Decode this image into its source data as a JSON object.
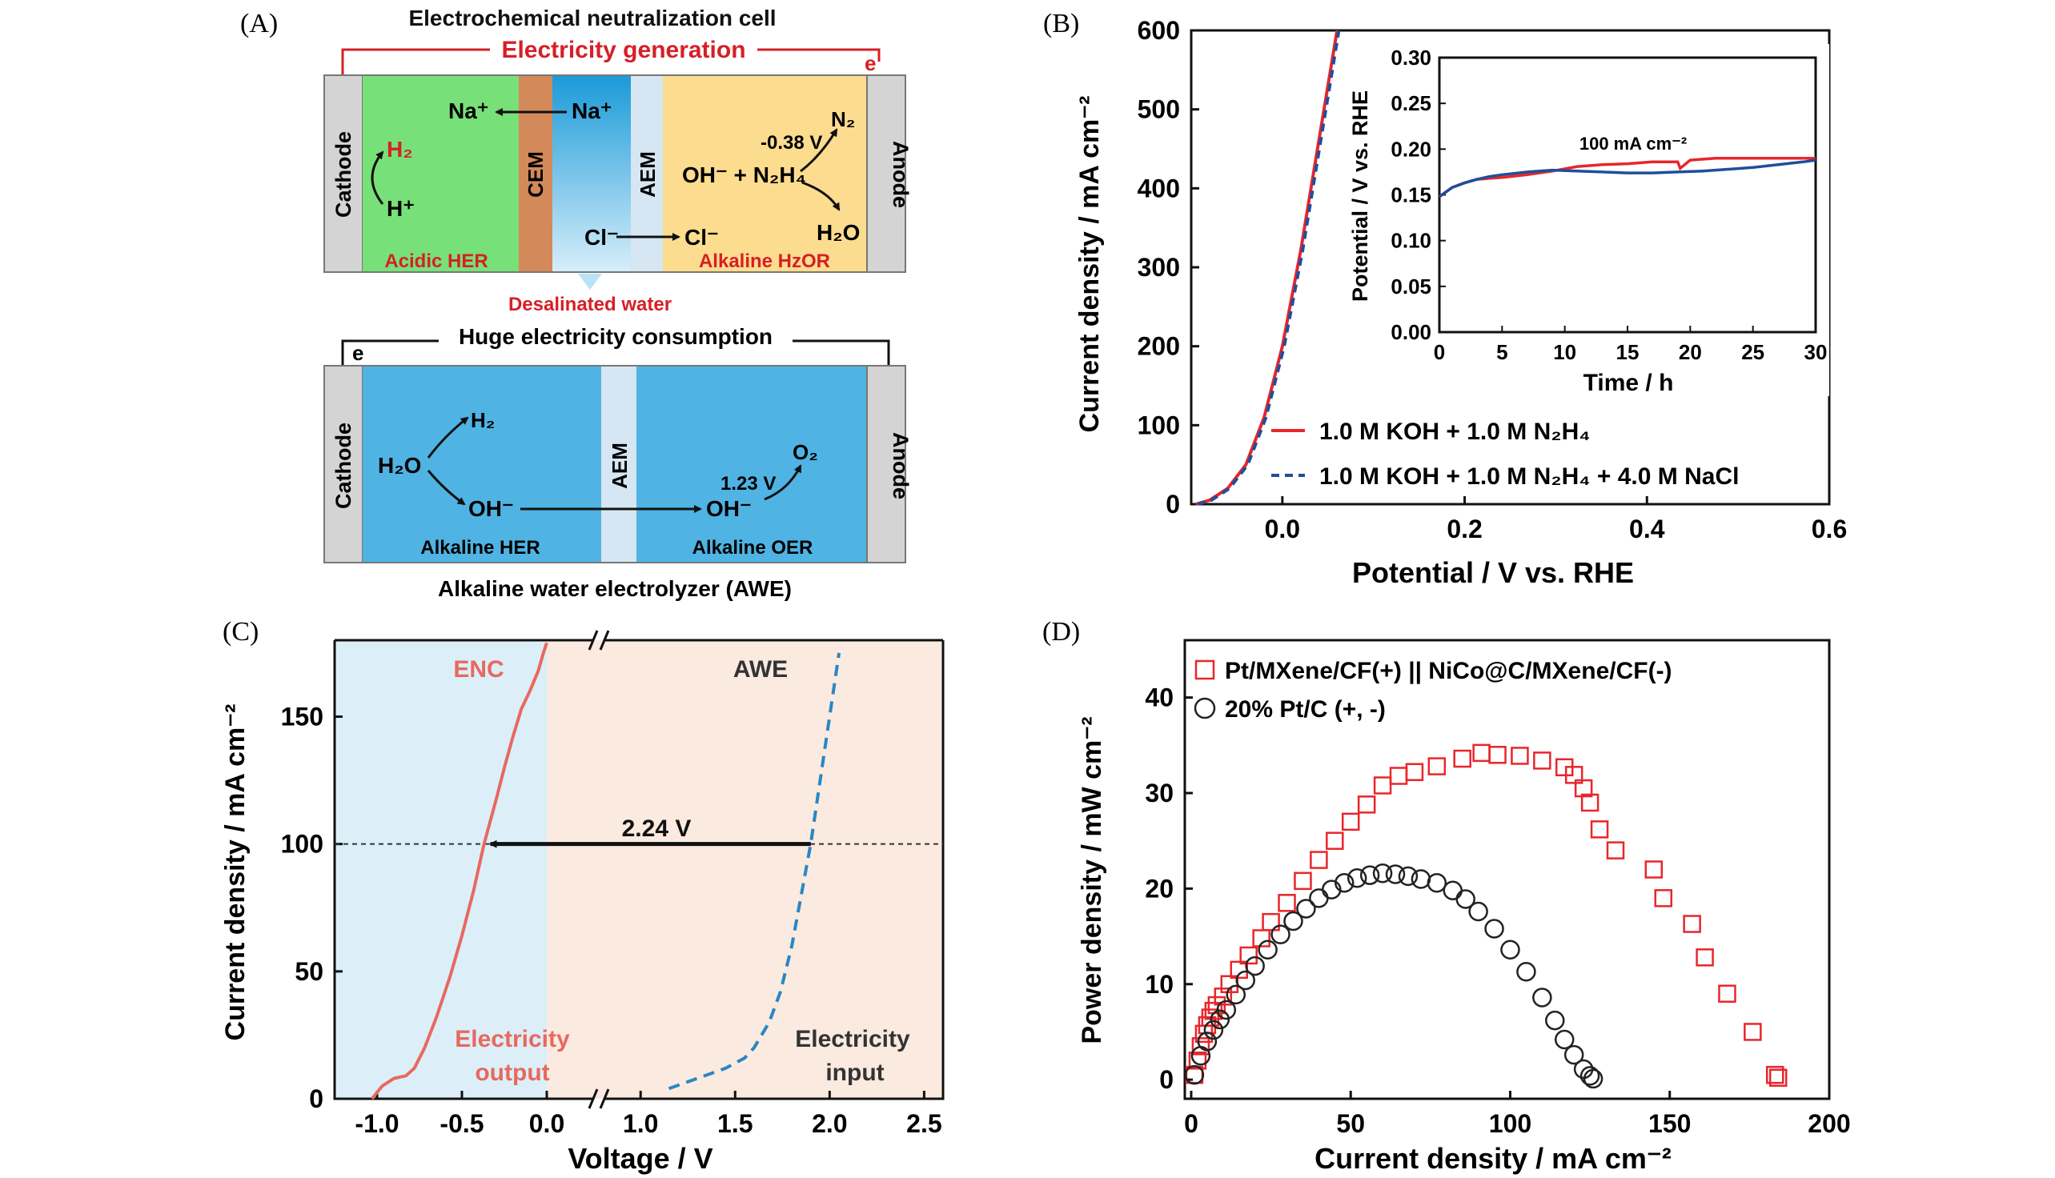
{
  "panelA": {
    "label": "(A)",
    "cell_title": "Electrochemical neutralization cell",
    "gen_label": "Electricity generation",
    "e_top": "e",
    "cathode": "Cathode",
    "anode": "Anode",
    "cem": "CEM",
    "aem": "AEM",
    "na_left": "Na⁺",
    "na_right": "Na⁺",
    "h2": "H₂",
    "hplus": "H⁺",
    "n2": "N₂",
    "potential": "-0.38 V",
    "oh_n2h4": "OH⁻ + N₂H₄",
    "h2o": "H₂O",
    "cl_left": "Cl⁻",
    "cl_right": "Cl⁻",
    "acidic_her": "Acidic HER",
    "alk_hzor": "Alkaline HzOR",
    "desal": "Desalinated water",
    "huge": "Huge electricity consumption",
    "e_bot": "e",
    "awe_h2": "H₂",
    "awe_h2o": "H₂O",
    "awe_oh1": "OH⁻",
    "awe_oh2": "OH⁻",
    "awe_o2": "O₂",
    "awe_v": "1.23 V",
    "alk_her": "Alkaline HER",
    "alk_oer": "Alkaline OER",
    "awe_title": "Alkaline water electrolyzer (AWE)"
  },
  "chart_data": [
    {
      "panel": "(B)",
      "type": "line",
      "xlabel": "Potential / V vs. RHE",
      "ylabel": "Current density / mA cm⁻²",
      "xlim": [
        -0.1,
        0.6
      ],
      "ylim": [
        0,
        600
      ],
      "xticks": [
        "0.0",
        "0.2",
        "0.4",
        "0.6"
      ],
      "yticks": [
        "0",
        "100",
        "200",
        "300",
        "400",
        "500",
        "600"
      ],
      "series": [
        {
          "name": "1.0 M KOH + 1.0 M N₂H₄",
          "color": "#e8262b",
          "style": "solid",
          "x": [
            -0.095,
            -0.08,
            -0.06,
            -0.04,
            -0.02,
            0.0,
            0.01,
            0.02,
            0.03,
            0.04,
            0.05,
            0.06
          ],
          "y": [
            0,
            5,
            20,
            50,
            110,
            200,
            260,
            320,
            390,
            460,
            530,
            600
          ]
        },
        {
          "name": "1.0 M KOH + 1.0 M N₂H₄ + 4.0 M NaCl",
          "color": "#1f4e9c",
          "style": "dashed",
          "x": [
            -0.093,
            -0.078,
            -0.058,
            -0.038,
            -0.018,
            0.002,
            0.012,
            0.022,
            0.032,
            0.042,
            0.052,
            0.062
          ],
          "y": [
            0,
            5,
            20,
            50,
            110,
            200,
            260,
            320,
            390,
            460,
            530,
            600
          ]
        }
      ],
      "inset": {
        "xlabel": "Time / h",
        "ylabel": "Potential / V vs. RHE",
        "xlim": [
          0,
          30
        ],
        "ylim": [
          0,
          0.3
        ],
        "xticks": [
          "0",
          "5",
          "10",
          "15",
          "20",
          "25",
          "30"
        ],
        "yticks": [
          "0.00",
          "0.05",
          "0.10",
          "0.15",
          "0.20",
          "0.25",
          "0.30"
        ],
        "annotation": "100 mA cm⁻²",
        "series": [
          {
            "color": "#e8262b",
            "x": [
              0,
              1,
              2,
              3,
              4,
              5,
              7,
              9,
              11,
              13,
              15,
              17,
              19,
              19.2,
              20,
              22,
              25,
              28,
              30
            ],
            "y": [
              0.148,
              0.158,
              0.163,
              0.167,
              0.168,
              0.169,
              0.172,
              0.176,
              0.181,
              0.183,
              0.184,
              0.186,
              0.186,
              0.179,
              0.188,
              0.19,
              0.19,
              0.19,
              0.19
            ]
          },
          {
            "color": "#1f4e9c",
            "x": [
              0,
              1,
              2,
              3,
              4,
              5,
              7,
              9,
              11,
              13,
              15,
              17,
              19,
              21,
              23,
              25,
              27,
              29,
              30
            ],
            "y": [
              0.148,
              0.158,
              0.163,
              0.167,
              0.17,
              0.172,
              0.175,
              0.177,
              0.176,
              0.175,
              0.174,
              0.174,
              0.175,
              0.176,
              0.178,
              0.18,
              0.183,
              0.186,
              0.188
            ]
          }
        ]
      }
    },
    {
      "panel": "(C)",
      "type": "line",
      "xlabel": "Voltage / V",
      "ylabel": "Current density / mA cm⁻²",
      "xticks": [
        "-1.0",
        "-0.5",
        "0.0",
        "1.0",
        "1.5",
        "2.0",
        "2.5"
      ],
      "yticks": [
        "0",
        "50",
        "100",
        "150"
      ],
      "ylim": [
        0,
        180
      ],
      "left_xlim": [
        -1.25,
        0.0
      ],
      "right_xlim": [
        0.8,
        2.6
      ],
      "enc_label": "ENC",
      "awe_label": "AWE",
      "arrow_label": "2.24 V",
      "out_label_1": "Electricity",
      "out_label_2": "output",
      "in_label_1": "Electricity",
      "in_label_2": "input",
      "series": [
        {
          "name": "ENC",
          "color": "#e8695f",
          "style": "solid",
          "x": [
            -1.03,
            -0.97,
            -0.9,
            -0.83,
            -0.78,
            -0.72,
            -0.65,
            -0.57,
            -0.5,
            -0.43,
            -0.37,
            -0.3,
            -0.25,
            -0.2,
            -0.15,
            -0.1,
            -0.05,
            -0.02,
            0.0
          ],
          "y": [
            0,
            5,
            8,
            9,
            12,
            20,
            32,
            48,
            64,
            82,
            100,
            117,
            130,
            142,
            153,
            160,
            168,
            175,
            179
          ]
        },
        {
          "name": "AWE",
          "color": "#2a86c4",
          "style": "dashed",
          "x": [
            1.15,
            1.3,
            1.45,
            1.55,
            1.6,
            1.68,
            1.74,
            1.8,
            1.85,
            1.9,
            1.95,
            2.0,
            2.05
          ],
          "y": [
            4,
            8,
            12,
            16,
            20,
            30,
            42,
            60,
            80,
            100,
            125,
            150,
            175
          ]
        }
      ]
    },
    {
      "panel": "(D)",
      "type": "scatter",
      "xlabel": "Current density / mA cm⁻²",
      "ylabel": "Power density / mW cm⁻²",
      "xlim": [
        -2,
        200
      ],
      "ylim": [
        -2,
        46
      ],
      "xticks": [
        "0",
        "50",
        "100",
        "150",
        "200"
      ],
      "yticks": [
        "0",
        "10",
        "20",
        "30",
        "40"
      ],
      "series": [
        {
          "name": "Pt/MXene/CF(+) || NiCo@C/MXene/CF(-)",
          "marker": "square",
          "color": "#e8262b",
          "x": [
            1,
            2,
            3,
            4,
            5,
            6,
            7,
            8,
            10,
            12,
            15,
            18,
            22,
            25,
            30,
            35,
            40,
            45,
            50,
            55,
            60,
            65,
            70,
            77,
            85,
            91,
            96,
            103,
            110,
            117,
            120,
            123,
            125,
            128,
            133,
            145,
            148,
            157,
            161,
            168,
            176,
            183,
            184
          ],
          "y": [
            0.5,
            2,
            3.5,
            4.8,
            5.7,
            6.5,
            7.2,
            7.8,
            8.7,
            10,
            11.5,
            13,
            14.8,
            16.5,
            18.5,
            20.8,
            23,
            25,
            27,
            28.8,
            30.8,
            31.8,
            32.2,
            32.8,
            33.6,
            34.2,
            34,
            33.9,
            33.4,
            32.7,
            31.9,
            30.5,
            29,
            26.2,
            24,
            22,
            19,
            16.3,
            12.8,
            9,
            5,
            0.5,
            0.2
          ]
        },
        {
          "name": "20% Pt/C (+, -)",
          "marker": "circle",
          "color": "#222222",
          "x": [
            1,
            3,
            5,
            7,
            9,
            11,
            14,
            17,
            20,
            24,
            28,
            32,
            36,
            40,
            44,
            48,
            52,
            56,
            60,
            64,
            68,
            72,
            77,
            82,
            86,
            90,
            95,
            100,
            105,
            110,
            114,
            117,
            120,
            123,
            125,
            126
          ],
          "y": [
            0.5,
            2.5,
            4,
            5.2,
            6.3,
            7.3,
            8.9,
            10.4,
            11.9,
            13.6,
            15.2,
            16.6,
            17.9,
            19,
            19.9,
            20.6,
            21.1,
            21.4,
            21.6,
            21.5,
            21.3,
            21,
            20.6,
            19.8,
            18.9,
            17.6,
            15.8,
            13.6,
            11.3,
            8.6,
            6.2,
            4.2,
            2.6,
            1.1,
            0.4,
            0.1
          ]
        }
      ]
    }
  ]
}
